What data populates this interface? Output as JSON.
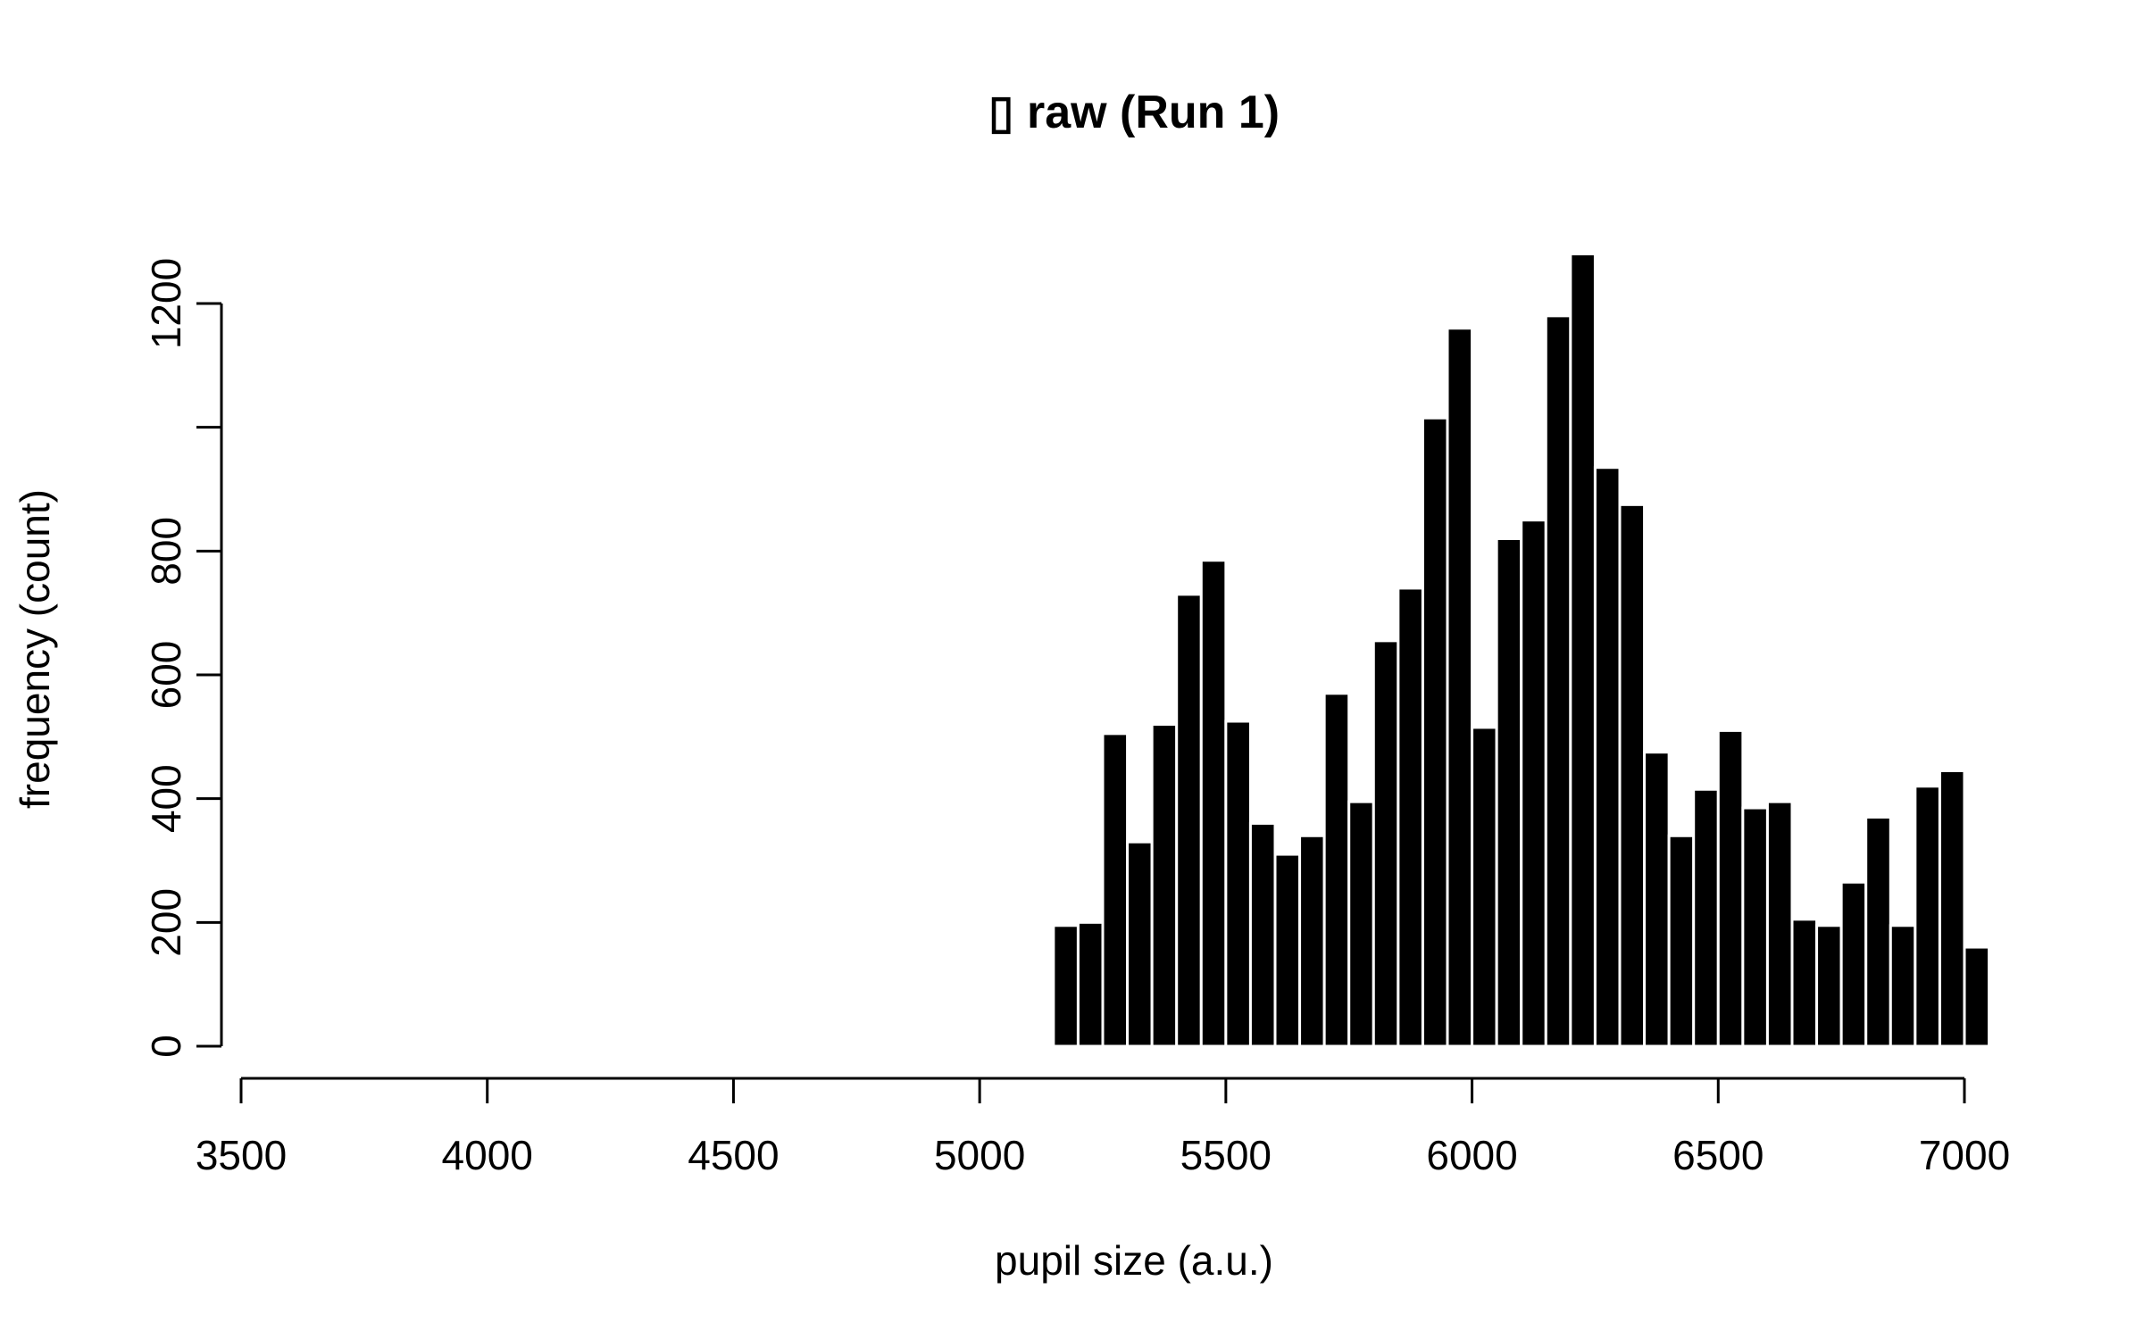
{
  "chart_data": {
    "type": "bar",
    "title": "▯ raw (Run 1)",
    "xlabel": "pupil size (a.u.)",
    "ylabel": "frequency (count)",
    "bar_color": "#000000",
    "x_ticks": [
      3500,
      4000,
      4500,
      5000,
      5500,
      6000,
      6500,
      7000
    ],
    "y_ticks": [
      0,
      200,
      400,
      600,
      800,
      1000,
      1200
    ],
    "y_tick_labels": [
      "0",
      "200",
      "400",
      "600",
      "800",
      "",
      "1200"
    ],
    "x_tick_labels": [
      "3500",
      "4000",
      "4500",
      "5000",
      "5500",
      "6000",
      "6500",
      "7000"
    ],
    "xlim": [
      3500,
      7000
    ],
    "ylim": [
      0,
      1200
    ],
    "bin_width": 50,
    "bins": [
      {
        "x0": 5150,
        "x1": 5200,
        "count": 195
      },
      {
        "x0": 5200,
        "x1": 5250,
        "count": 200
      },
      {
        "x0": 5250,
        "x1": 5300,
        "count": 505
      },
      {
        "x0": 5300,
        "x1": 5350,
        "count": 330
      },
      {
        "x0": 5350,
        "x1": 5400,
        "count": 520
      },
      {
        "x0": 5400,
        "x1": 5450,
        "count": 730
      },
      {
        "x0": 5450,
        "x1": 5500,
        "count": 785
      },
      {
        "x0": 5500,
        "x1": 5550,
        "count": 525
      },
      {
        "x0": 5550,
        "x1": 5600,
        "count": 360
      },
      {
        "x0": 5600,
        "x1": 5650,
        "count": 310
      },
      {
        "x0": 5650,
        "x1": 5700,
        "count": 340
      },
      {
        "x0": 5700,
        "x1": 5750,
        "count": 570
      },
      {
        "x0": 5750,
        "x1": 5800,
        "count": 395
      },
      {
        "x0": 5800,
        "x1": 5850,
        "count": 655
      },
      {
        "x0": 5850,
        "x1": 5900,
        "count": 740
      },
      {
        "x0": 5900,
        "x1": 5950,
        "count": 1015
      },
      {
        "x0": 5950,
        "x1": 6000,
        "count": 1160
      },
      {
        "x0": 6000,
        "x1": 6050,
        "count": 515
      },
      {
        "x0": 6050,
        "x1": 6100,
        "count": 820
      },
      {
        "x0": 6100,
        "x1": 6150,
        "count": 850
      },
      {
        "x0": 6150,
        "x1": 6200,
        "count": 1180
      },
      {
        "x0": 6200,
        "x1": 6250,
        "count": 1280
      },
      {
        "x0": 6250,
        "x1": 6300,
        "count": 935
      },
      {
        "x0": 6300,
        "x1": 6350,
        "count": 875
      },
      {
        "x0": 6350,
        "x1": 6400,
        "count": 475
      },
      {
        "x0": 6400,
        "x1": 6450,
        "count": 340
      },
      {
        "x0": 6450,
        "x1": 6500,
        "count": 415
      },
      {
        "x0": 6500,
        "x1": 6550,
        "count": 510
      },
      {
        "x0": 6550,
        "x1": 6600,
        "count": 385
      },
      {
        "x0": 6600,
        "x1": 6650,
        "count": 395
      },
      {
        "x0": 6650,
        "x1": 6700,
        "count": 205
      },
      {
        "x0": 6700,
        "x1": 6750,
        "count": 195
      },
      {
        "x0": 6750,
        "x1": 6800,
        "count": 265
      },
      {
        "x0": 6800,
        "x1": 6850,
        "count": 370
      },
      {
        "x0": 6850,
        "x1": 6900,
        "count": 195
      },
      {
        "x0": 6900,
        "x1": 6950,
        "count": 420
      },
      {
        "x0": 6950,
        "x1": 7000,
        "count": 445
      },
      {
        "x0": 7000,
        "x1": 7050,
        "count": 160
      }
    ]
  }
}
